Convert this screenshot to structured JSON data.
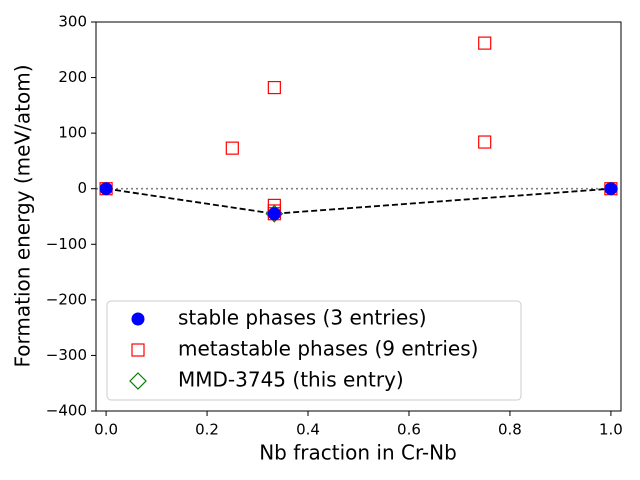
{
  "chart_data": {
    "type": "scatter",
    "xlabel": "Nb fraction in Cr-Nb",
    "ylabel": "Formation energy (meV/atom)",
    "xlim": [
      -0.02,
      1.02
    ],
    "ylim": [
      -400,
      300
    ],
    "xticks": [
      {
        "value": 0,
        "label": "0.0"
      },
      {
        "value": 0.2,
        "label": "0.2"
      },
      {
        "value": 0.4,
        "label": "0.4"
      },
      {
        "value": 0.6,
        "label": "0.6"
      },
      {
        "value": 0.8,
        "label": "0.8"
      },
      {
        "value": 1,
        "label": "1.0"
      }
    ],
    "yticks": [
      {
        "value": -400,
        "label": "−400"
      },
      {
        "value": -300,
        "label": "−300"
      },
      {
        "value": -200,
        "label": "−200"
      },
      {
        "value": -100,
        "label": "−100"
      },
      0,
      100,
      200,
      300
    ],
    "hline": 0,
    "hull": true,
    "legend": "lower left",
    "series": [
      {
        "name": "stable phases (3 entries)",
        "color": "#0000ff",
        "marker": "circle",
        "x": [
          0,
          0.3333,
          1
        ],
        "y": [
          0,
          -45,
          0
        ]
      },
      {
        "name": "metastable phases (9 entries)",
        "color": "#ff0000",
        "marker": "square",
        "x": [
          0,
          0.25,
          0.3333,
          0.3333,
          0.3333,
          0.3333,
          0.75,
          0.75,
          1
        ],
        "y": [
          0,
          73,
          182,
          -30,
          -40,
          -45,
          262,
          84,
          0
        ]
      },
      {
        "name": "MMD-3745 (this entry)",
        "color": "#008000",
        "marker": "diamond",
        "x": [
          0.3333
        ],
        "y": [
          -45
        ]
      }
    ]
  }
}
